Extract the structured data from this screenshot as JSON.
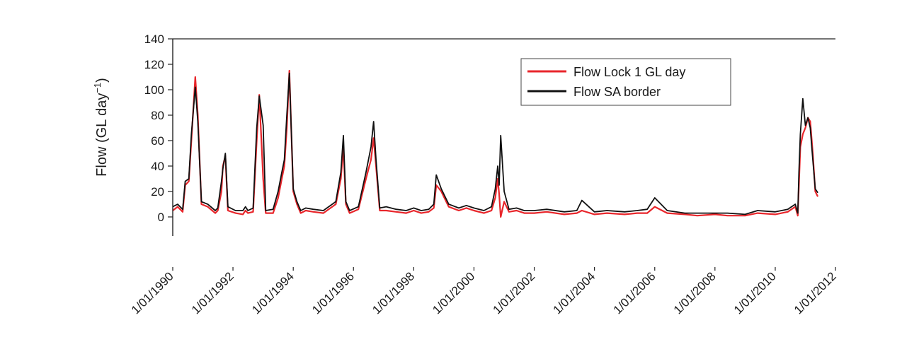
{
  "colors": {
    "lock1": "#e8262b",
    "sa_border": "#111111",
    "axis": "#222222",
    "plot_bg": "#ffffff"
  },
  "chart_data": {
    "type": "line",
    "ylabel": "Flow (GL day",
    "ylabel_superscript": "−1",
    "ylabel_close": ")",
    "ylim": [
      -15,
      140
    ],
    "yticks": [
      0,
      20,
      40,
      60,
      80,
      100,
      120,
      140
    ],
    "xlim": [
      "1990-01-01",
      "2012-01-01"
    ],
    "xticks": [
      "1/01/1990",
      "1/01/1992",
      "1/01/1994",
      "1/01/1996",
      "1/01/1998",
      "1/01/2000",
      "1/01/2002",
      "1/01/2004",
      "1/01/2006",
      "1/01/2008",
      "1/01/2010",
      "1/01/2012"
    ],
    "xtick_dates": [
      "1990-01-01",
      "1992-01-01",
      "1994-01-01",
      "1996-01-01",
      "1998-01-01",
      "2000-01-01",
      "2002-01-01",
      "2004-01-01",
      "2006-01-01",
      "2008-01-01",
      "2010-01-01",
      "2012-01-01"
    ],
    "grid": false,
    "legend_position": "top-right",
    "series": [
      {
        "name": "Flow Lock 1 GL day",
        "color": "#e8262b",
        "x": [
          "1990-01-01",
          "1990-03-01",
          "1990-05-01",
          "1990-06-01",
          "1990-07-15",
          "1990-08-15",
          "1990-10-01",
          "1990-11-01",
          "1990-12-15",
          "1991-03-01",
          "1991-06-01",
          "1991-07-01",
          "1991-08-15",
          "1991-09-01",
          "1991-10-01",
          "1991-11-01",
          "1992-02-01",
          "1992-05-01",
          "1992-06-01",
          "1992-07-01",
          "1992-09-01",
          "1992-10-15",
          "1992-11-15",
          "1993-01-01",
          "1993-02-01",
          "1993-05-01",
          "1993-07-01",
          "1993-08-15",
          "1993-09-15",
          "1993-10-15",
          "1993-11-15",
          "1994-01-01",
          "1994-02-15",
          "1994-04-01",
          "1994-06-01",
          "1994-09-01",
          "1995-01-01",
          "1995-06-01",
          "1995-08-01",
          "1995-09-01",
          "1995-10-01",
          "1995-11-15",
          "1996-03-01",
          "1996-06-01",
          "1996-08-01",
          "1996-09-01",
          "1996-10-01",
          "1996-11-15",
          "1997-02-01",
          "1997-06-01",
          "1997-10-01",
          "1998-01-01",
          "1998-04-01",
          "1998-07-01",
          "1998-09-01",
          "1998-10-01",
          "1998-12-01",
          "1999-03-01",
          "1999-07-01",
          "1999-10-01",
          "2000-01-01",
          "2000-05-01",
          "2000-08-01",
          "2000-09-15",
          "2000-10-15",
          "2000-11-01",
          "2000-11-20",
          "2001-01-01",
          "2001-03-01",
          "2001-06-01",
          "2001-09-01",
          "2002-01-01",
          "2002-06-01",
          "2003-01-01",
          "2003-06-01",
          "2003-08-01",
          "2004-01-01",
          "2004-06-01",
          "2005-01-01",
          "2005-06-01",
          "2005-10-01",
          "2006-01-01",
          "2006-06-01",
          "2007-01-01",
          "2007-06-01",
          "2008-01-01",
          "2008-06-01",
          "2009-01-01",
          "2009-06-01",
          "2010-01-01",
          "2010-06-01",
          "2010-09-01",
          "2010-10-01",
          "2010-10-15",
          "2010-11-01",
          "2010-12-01",
          "2011-01-01",
          "2011-02-01",
          "2011-03-01",
          "2011-04-01",
          "2011-05-01",
          "2011-06-01"
        ],
        "values": [
          5,
          8,
          4,
          25,
          28,
          60,
          110,
          80,
          10,
          8,
          3,
          5,
          20,
          40,
          48,
          5,
          3,
          2,
          5,
          3,
          4,
          60,
          96,
          30,
          3,
          3,
          15,
          30,
          40,
          70,
          115,
          20,
          10,
          3,
          5,
          4,
          3,
          10,
          30,
          55,
          10,
          3,
          6,
          30,
          45,
          62,
          40,
          5,
          5,
          4,
          3,
          5,
          3,
          4,
          7,
          25,
          20,
          8,
          5,
          7,
          5,
          3,
          5,
          15,
          30,
          18,
          0,
          12,
          4,
          5,
          3,
          3,
          4,
          2,
          3,
          5,
          2,
          3,
          2,
          3,
          3,
          8,
          3,
          2,
          1,
          2,
          1,
          1,
          3,
          2,
          4,
          8,
          1,
          25,
          55,
          65,
          70,
          78,
          75,
          50,
          20,
          16
        ]
      },
      {
        "name": "Flow SA border",
        "color": "#111111",
        "x": [
          "1990-01-01",
          "1990-03-01",
          "1990-05-01",
          "1990-06-01",
          "1990-07-15",
          "1990-08-15",
          "1990-10-01",
          "1990-11-01",
          "1990-12-15",
          "1991-03-01",
          "1991-06-01",
          "1991-07-01",
          "1991-08-15",
          "1991-09-01",
          "1991-10-01",
          "1991-11-01",
          "1992-02-01",
          "1992-05-01",
          "1992-06-01",
          "1992-07-01",
          "1992-09-01",
          "1992-10-15",
          "1992-11-15",
          "1993-01-01",
          "1993-02-01",
          "1993-05-01",
          "1993-07-01",
          "1993-08-15",
          "1993-09-15",
          "1993-10-15",
          "1993-11-15",
          "1994-01-01",
          "1994-02-15",
          "1994-04-01",
          "1994-06-01",
          "1994-09-01",
          "1995-01-01",
          "1995-06-01",
          "1995-08-01",
          "1995-09-01",
          "1995-10-01",
          "1995-11-15",
          "1996-03-01",
          "1996-06-01",
          "1996-08-01",
          "1996-09-01",
          "1996-10-01",
          "1996-11-15",
          "1997-02-01",
          "1997-06-01",
          "1997-10-01",
          "1998-01-01",
          "1998-04-01",
          "1998-07-01",
          "1998-09-01",
          "1998-10-01",
          "1998-12-01",
          "1999-03-01",
          "1999-07-01",
          "1999-10-01",
          "2000-01-01",
          "2000-05-01",
          "2000-08-01",
          "2000-09-15",
          "2000-10-15",
          "2000-11-01",
          "2000-11-20",
          "2001-01-01",
          "2001-03-01",
          "2001-06-01",
          "2001-09-01",
          "2002-01-01",
          "2002-06-01",
          "2003-01-01",
          "2003-06-01",
          "2003-08-01",
          "2004-01-01",
          "2004-06-01",
          "2005-01-01",
          "2005-06-01",
          "2005-10-01",
          "2006-01-01",
          "2006-06-01",
          "2007-01-01",
          "2007-06-01",
          "2008-01-01",
          "2008-06-01",
          "2009-01-01",
          "2009-06-01",
          "2010-01-01",
          "2010-06-01",
          "2010-09-01",
          "2010-10-01",
          "2010-10-15",
          "2010-11-01",
          "2010-12-01",
          "2011-01-01",
          "2011-02-01",
          "2011-03-01",
          "2011-04-01",
          "2011-05-01",
          "2011-06-01"
        ],
        "values": [
          8,
          10,
          6,
          28,
          30,
          65,
          102,
          75,
          12,
          10,
          5,
          7,
          28,
          38,
          50,
          8,
          5,
          5,
          8,
          5,
          7,
          70,
          95,
          72,
          5,
          6,
          20,
          35,
          45,
          80,
          113,
          22,
          12,
          5,
          7,
          6,
          5,
          12,
          35,
          64,
          12,
          5,
          8,
          35,
          55,
          75,
          45,
          7,
          8,
          6,
          5,
          7,
          5,
          6,
          10,
          33,
          22,
          10,
          7,
          9,
          7,
          5,
          8,
          22,
          40,
          25,
          64,
          20,
          6,
          7,
          5,
          5,
          6,
          4,
          5,
          13,
          4,
          5,
          4,
          5,
          6,
          15,
          5,
          3,
          3,
          3,
          3,
          2,
          5,
          4,
          6,
          10,
          3,
          35,
          65,
          93,
          72,
          78,
          70,
          45,
          22,
          19
        ]
      }
    ]
  }
}
